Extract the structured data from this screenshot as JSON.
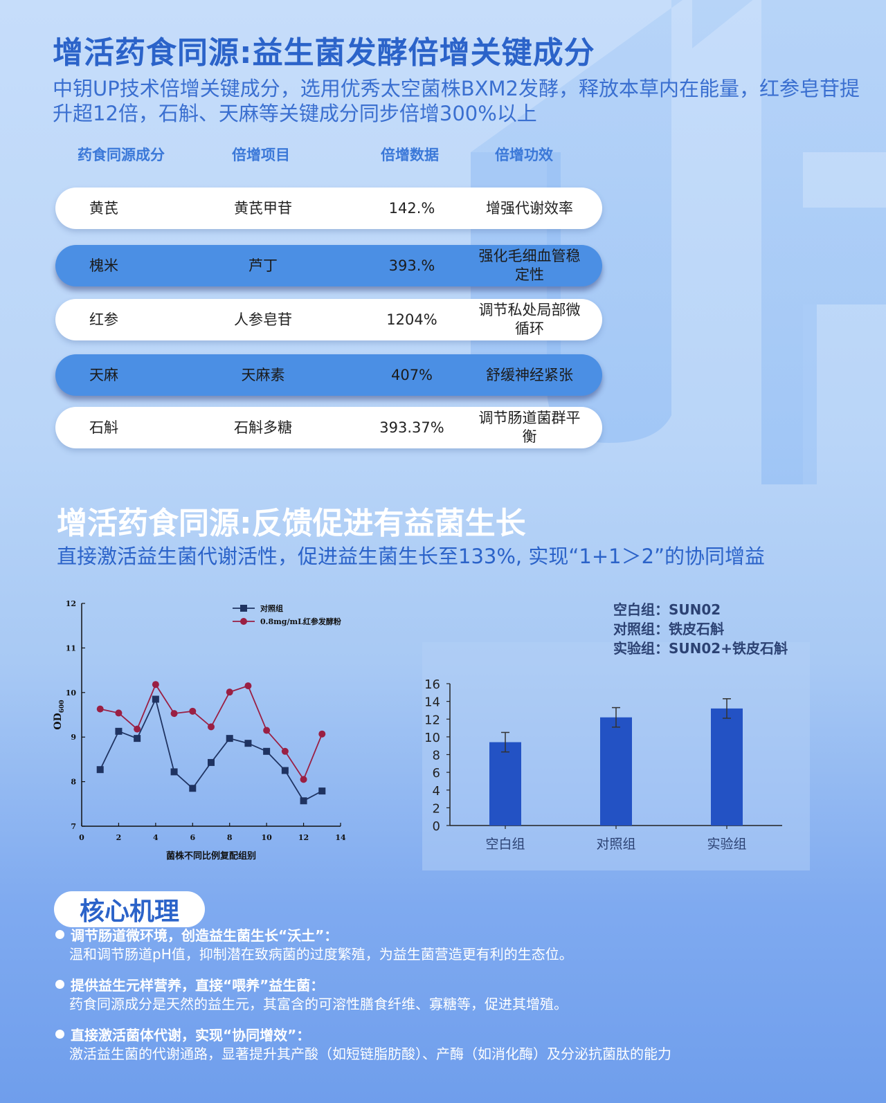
{
  "section1": {
    "title": "增活药食同源:益生菌发酵倍增关键成分",
    "subtitle": "中钥UP技术倍增关键成分，选用优秀太空菌株BXM2发酵，释放本草内在能量，红参皂苷提升超12倍，石斛、天麻等关键成分同步倍增300%以上"
  },
  "table": {
    "headers": [
      "药食同源成分",
      "倍增项目",
      "倍增数据",
      "倍增功效"
    ],
    "rows": [
      {
        "ingredient": "黄芪",
        "item": "黄芪甲苷",
        "value": "142.%",
        "effect": "增强代谢效率",
        "style": "white"
      },
      {
        "ingredient": "槐米",
        "item": "芦丁",
        "value": "393.%",
        "effect": "强化毛细血管稳定性",
        "style": "blue"
      },
      {
        "ingredient": "红参",
        "item": "人参皂苷",
        "value": "1204%",
        "effect": "调节私处局部微循环",
        "style": "white"
      },
      {
        "ingredient": "天麻",
        "item": "天麻素",
        "value": "407%",
        "effect": "舒缓神经紧张",
        "style": "blue"
      },
      {
        "ingredient": "石斛",
        "item": "石斛多糖",
        "value": "393.37%",
        "effect": "调节肠道菌群平衡",
        "style": "white"
      }
    ]
  },
  "section2": {
    "title": "增活药食同源:反馈促进有益菌生长",
    "subtitle": "直接激活益生菌代谢活性，促进益生菌生长至133%, 实现“1+1＞2”的协同增益"
  },
  "chart_data": [
    {
      "type": "line",
      "title": "",
      "xlabel": "菌株不同比例复配组别",
      "ylabel": "OD600",
      "xlim": [
        0,
        14
      ],
      "ylim": [
        7,
        12
      ],
      "x_ticks": [
        0,
        2,
        4,
        6,
        8,
        10,
        12,
        14
      ],
      "y_ticks": [
        7,
        8,
        9,
        10,
        11,
        12
      ],
      "legend_position": "top-right",
      "grid": false,
      "x": [
        1,
        2,
        3,
        4,
        5,
        6,
        7,
        8,
        9,
        10,
        11,
        12,
        13
      ],
      "series": [
        {
          "name": "对照组",
          "color": "#1f3361",
          "marker": "square",
          "values": [
            8.27,
            9.13,
            8.97,
            9.85,
            8.22,
            7.85,
            8.43,
            8.97,
            8.86,
            8.68,
            8.25,
            7.57,
            7.79
          ]
        },
        {
          "name": "0.8mg/mL红参发酵粉",
          "color": "#9a1f43",
          "marker": "circle",
          "values": [
            9.63,
            9.54,
            9.18,
            10.18,
            9.53,
            9.58,
            9.23,
            10.01,
            10.15,
            9.15,
            8.68,
            8.05,
            9.07
          ]
        }
      ]
    },
    {
      "type": "bar",
      "title": "",
      "legend_lines": [
        "空白组：SUN02",
        "对照组：铁皮石斛",
        "实验组：SUN02+铁皮石斛"
      ],
      "categories": [
        "空白组",
        "对照组",
        "实验组"
      ],
      "values": [
        9.4,
        12.2,
        13.2
      ],
      "errors": [
        1.1,
        1.1,
        1.1
      ],
      "ylim": [
        0,
        16
      ],
      "y_ticks": [
        0,
        2,
        4,
        6,
        8,
        10,
        12,
        14,
        16
      ],
      "grid": false,
      "bar_color": "#2352c4"
    }
  ],
  "mechanism": {
    "title": "核心机理",
    "items": [
      {
        "head": "调节肠道微环境，创造益生菌生长“沃土”：",
        "desc": "温和调节肠道pH值，抑制潜在致病菌的过度繁殖，为益生菌营造更有利的生态位。"
      },
      {
        "head": "提供益生元样营养，直接“喂养”益生菌：",
        "desc": "药食同源成分是天然的益生元，其富含的可溶性膳食纤维、寡糖等，促进其增殖。"
      },
      {
        "head": "直接激活菌体代谢，实现“协同增效”：",
        "desc": "激活益生菌的代谢通路，显著提升其产酸（如短链脂肪酸）、产酶（如消化酶）及分泌抗菌肽的能力"
      }
    ]
  }
}
